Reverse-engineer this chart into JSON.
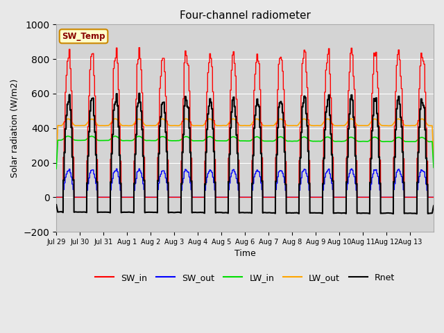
{
  "title": "Four-channel radiometer",
  "xlabel": "Time",
  "ylabel": "Solar radiation (W/m2)",
  "ylim": [
    -200,
    1000
  ],
  "background_color": "#e8e8e8",
  "plot_bg_color": "#d4d4d4",
  "x_tick_labels": [
    "Jul 29",
    "Jul 30",
    "Jul 31",
    "Aug 1",
    "Aug 2",
    "Aug 3",
    "Aug 4",
    "Aug 5",
    "Aug 6",
    "Aug 7",
    "Aug 8",
    "Aug 9",
    "Aug 10",
    "Aug 11",
    "Aug 12",
    "Aug 13"
  ],
  "n_days": 16,
  "sw_temp_label": "SW_Temp",
  "legend_entries": [
    "SW_in",
    "SW_out",
    "LW_in",
    "LW_out",
    "Rnet"
  ],
  "colors": {
    "SW_in": "#ff0000",
    "SW_out": "#0000ff",
    "LW_in": "#00dd00",
    "LW_out": "#ffa500",
    "Rnet": "#000000"
  },
  "sw_temp_box_facecolor": "#ffffcc",
  "sw_temp_box_edgecolor": "#cc8800",
  "sw_temp_text_color": "#880000",
  "yticks": [
    -200,
    0,
    200,
    400,
    600,
    800,
    1000
  ],
  "grid_color": "#ffffff"
}
